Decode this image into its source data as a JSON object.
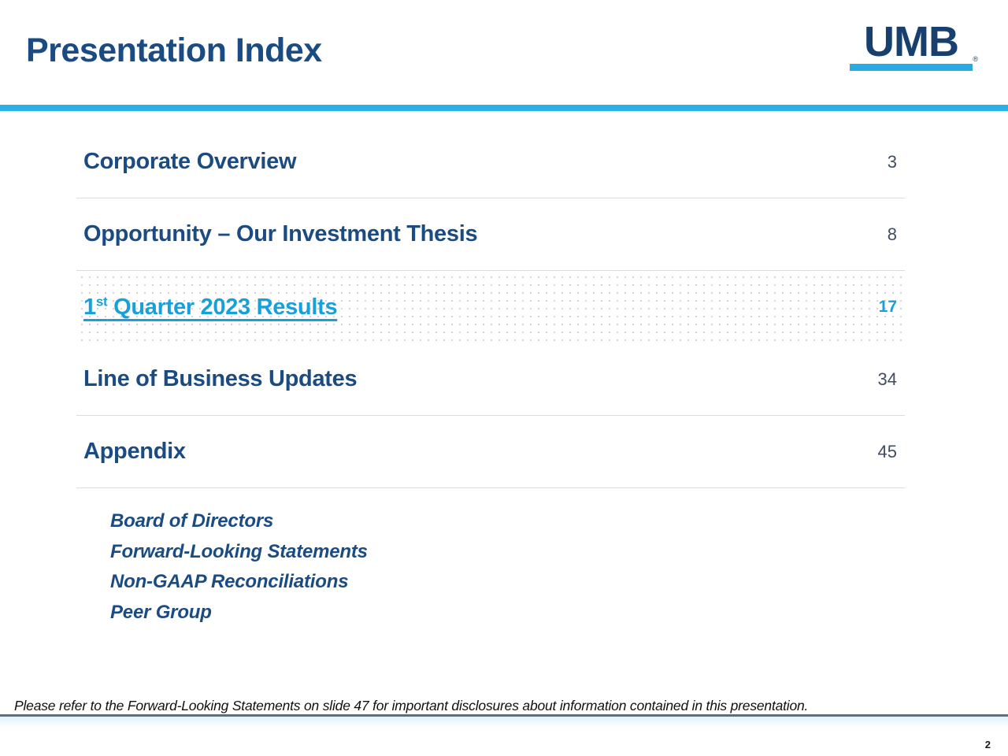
{
  "header": {
    "title": "Presentation Index",
    "logo": {
      "text": "UMB",
      "registered": "®"
    }
  },
  "toc": {
    "items": [
      {
        "label": "Corporate Overview",
        "page": "3"
      },
      {
        "label": "Opportunity – Our Investment Thesis",
        "page": "8"
      },
      {
        "prefix": "1",
        "sup": "st",
        "rest": " Quarter 2023 Results",
        "page": "17",
        "link": true
      },
      {
        "label": "Line of Business Updates",
        "page": "34"
      },
      {
        "label": "Appendix",
        "page": "45"
      }
    ],
    "appendix_sub_items": [
      "Board of Directors",
      "Forward-Looking Statements",
      "Non-GAAP Reconciliations",
      "Peer Group"
    ]
  },
  "footer": {
    "note": "Please refer to the Forward-Looking Statements on slide 47 for important disclosures about information contained in this presentation.",
    "page_number": "2"
  },
  "colors": {
    "title_navy": "#1a4b82",
    "logo_navy": "#17406f",
    "cyan_rule": "#2ab1e7",
    "link_cyan": "#18a0da",
    "divider_gray": "#dcdcdc",
    "page_number_gray": "#3e4d62",
    "footer_rule_slate": "#5e6e80"
  }
}
